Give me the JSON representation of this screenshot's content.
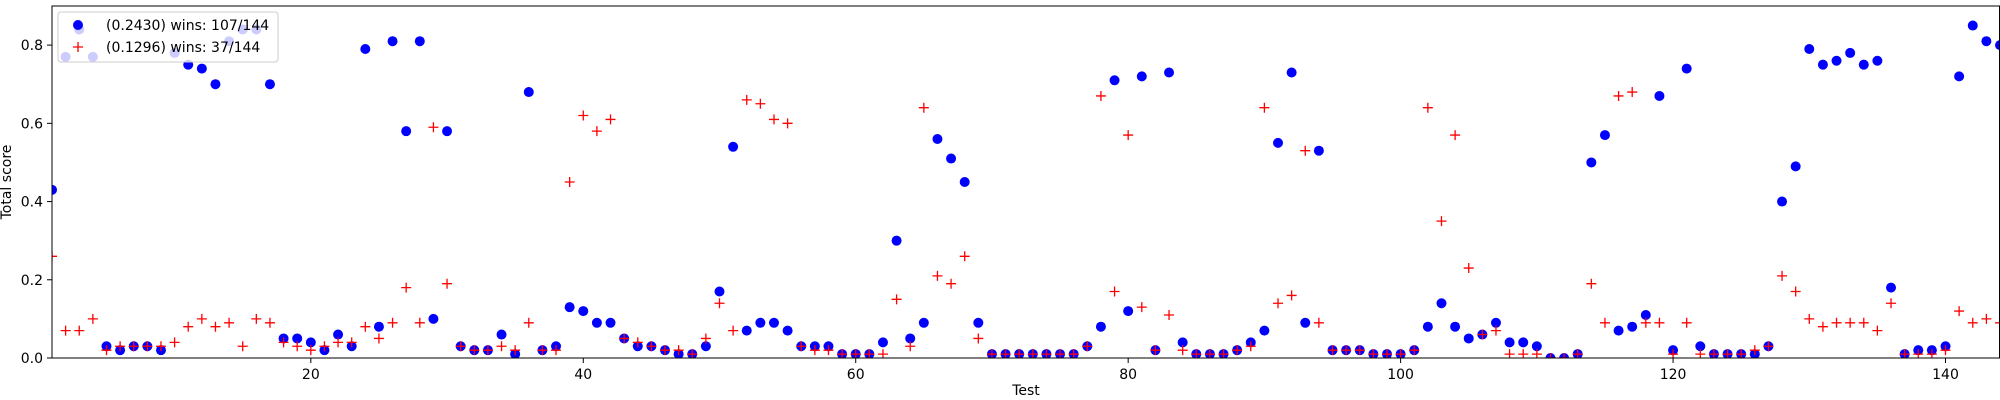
{
  "chart_data": {
    "type": "scatter",
    "xlabel": "Test",
    "ylabel": "Total score",
    "xlim": [
      1,
      144
    ],
    "ylim": [
      0,
      0.9
    ],
    "xticks": [
      20,
      40,
      60,
      80,
      100,
      120,
      140
    ],
    "yticks": [
      0.0,
      0.2,
      0.4,
      0.6,
      0.8
    ],
    "ytick_labels": [
      "0.0",
      "0.2",
      "0.4",
      "0.6",
      "0.8"
    ],
    "grid": false,
    "legend_position": "top-left",
    "x": [
      1,
      2,
      3,
      4,
      5,
      6,
      7,
      8,
      9,
      10,
      11,
      12,
      13,
      14,
      15,
      16,
      17,
      18,
      19,
      20,
      21,
      22,
      23,
      24,
      25,
      26,
      27,
      28,
      29,
      30,
      31,
      32,
      33,
      34,
      35,
      36,
      37,
      38,
      39,
      40,
      41,
      42,
      43,
      44,
      45,
      46,
      47,
      48,
      49,
      50,
      51,
      52,
      53,
      54,
      55,
      56,
      57,
      58,
      59,
      60,
      61,
      62,
      63,
      64,
      65,
      66,
      67,
      68,
      69,
      70,
      71,
      72,
      73,
      74,
      75,
      76,
      77,
      78,
      79,
      80,
      81,
      82,
      83,
      84,
      85,
      86,
      87,
      88,
      89,
      90,
      91,
      92,
      93,
      94,
      95,
      96,
      97,
      98,
      99,
      100,
      101,
      102,
      103,
      104,
      105,
      106,
      107,
      108,
      109,
      110,
      111,
      112,
      113,
      114,
      115,
      116,
      117,
      118,
      119,
      120,
      121,
      122,
      123,
      124,
      125,
      126,
      127,
      128,
      129,
      130,
      131,
      132,
      133,
      134,
      135,
      136,
      137,
      138,
      139,
      140,
      141,
      142,
      143,
      144
    ],
    "series": [
      {
        "name": "(0.2430) wins: 107/144",
        "marker": "circle",
        "color": "#0000ff",
        "values": [
          0.43,
          0.77,
          0.84,
          0.77,
          0.03,
          0.02,
          0.03,
          0.03,
          0.02,
          0.78,
          0.75,
          0.74,
          0.7,
          0.81,
          0.84,
          0.84,
          0.7,
          0.05,
          0.05,
          0.04,
          0.02,
          0.06,
          0.03,
          0.79,
          0.08,
          0.81,
          0.58,
          0.81,
          0.1,
          0.58,
          0.03,
          0.02,
          0.02,
          0.06,
          0.01,
          0.68,
          0.02,
          0.03,
          0.13,
          0.12,
          0.09,
          0.09,
          0.05,
          0.03,
          0.03,
          0.02,
          0.01,
          0.01,
          0.03,
          0.17,
          0.54,
          0.07,
          0.09,
          0.09,
          0.07,
          0.03,
          0.03,
          0.03,
          0.01,
          0.01,
          0.01,
          0.04,
          0.3,
          0.05,
          0.09,
          0.56,
          0.51,
          0.45,
          0.09,
          0.01,
          0.01,
          0.01,
          0.01,
          0.01,
          0.01,
          0.01,
          0.03,
          0.08,
          0.71,
          0.12,
          0.72,
          0.02,
          0.73,
          0.04,
          0.01,
          0.01,
          0.01,
          0.02,
          0.04,
          0.07,
          0.55,
          0.73,
          0.09,
          0.53,
          0.02,
          0.02,
          0.02,
          0.01,
          0.01,
          0.01,
          0.02,
          0.08,
          0.14,
          0.08,
          0.05,
          0.06,
          0.09,
          0.04,
          0.04,
          0.03,
          0.0,
          0.0,
          0.01,
          0.5,
          0.57,
          0.07,
          0.08,
          0.11,
          0.67,
          0.02,
          0.74,
          0.03,
          0.01,
          0.01,
          0.01,
          0.01,
          0.03,
          0.4,
          0.49,
          0.79,
          0.75,
          0.76,
          0.78,
          0.75,
          0.76,
          0.18,
          0.01,
          0.02,
          0.02,
          0.03,
          0.72,
          0.85,
          0.81,
          0.8
        ]
      },
      {
        "name": "(0.1296) wins: 37/144",
        "marker": "plus",
        "color": "#ff0000",
        "values": [
          0.26,
          0.07,
          0.07,
          0.1,
          0.02,
          0.03,
          0.03,
          0.03,
          0.03,
          0.04,
          0.08,
          0.1,
          0.08,
          0.09,
          0.03,
          0.1,
          0.09,
          0.04,
          0.03,
          0.02,
          0.03,
          0.04,
          0.04,
          0.08,
          0.05,
          0.09,
          0.18,
          0.09,
          0.59,
          0.19,
          0.03,
          0.02,
          0.02,
          0.03,
          0.02,
          0.09,
          0.02,
          0.02,
          0.45,
          0.62,
          0.58,
          0.61,
          0.05,
          0.04,
          0.03,
          0.02,
          0.02,
          0.01,
          0.05,
          0.14,
          0.07,
          0.66,
          0.65,
          0.61,
          0.6,
          0.03,
          0.02,
          0.02,
          0.01,
          0.01,
          0.01,
          0.01,
          0.15,
          0.03,
          0.64,
          0.21,
          0.19,
          0.26,
          0.05,
          0.01,
          0.01,
          0.01,
          0.01,
          0.01,
          0.01,
          0.01,
          0.03,
          0.67,
          0.17,
          0.57,
          0.13,
          0.02,
          0.11,
          0.02,
          0.01,
          0.01,
          0.01,
          0.02,
          0.03,
          0.64,
          0.14,
          0.16,
          0.53,
          0.09,
          0.02,
          0.02,
          0.02,
          0.01,
          0.01,
          0.01,
          0.02,
          0.64,
          0.35,
          0.57,
          0.23,
          0.06,
          0.07,
          0.01,
          0.01,
          0.01,
          0.0,
          0.0,
          0.01,
          0.19,
          0.09,
          0.67,
          0.68,
          0.09,
          0.09,
          0.01,
          0.09,
          0.01,
          0.01,
          0.01,
          0.01,
          0.02,
          0.03,
          0.21,
          0.17,
          0.1,
          0.08,
          0.09,
          0.09,
          0.09,
          0.07,
          0.14,
          0.01,
          0.01,
          0.01,
          0.02,
          0.12,
          0.09,
          0.1,
          0.09
        ]
      }
    ]
  }
}
